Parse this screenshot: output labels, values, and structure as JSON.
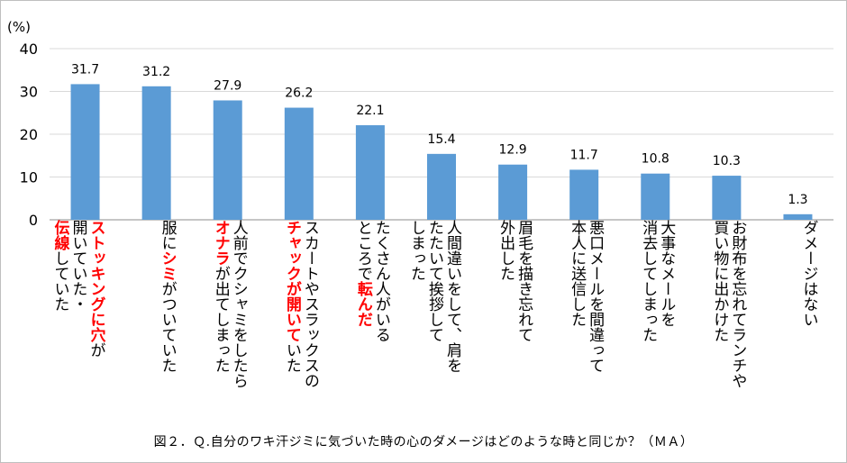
{
  "chart_data": {
    "type": "bar",
    "unit_label": "(%)",
    "ylim": [
      0,
      40
    ],
    "yticks": [
      0,
      10,
      20,
      30,
      40
    ],
    "grid": true,
    "color": "#5b9bd5",
    "highlight_color": "#ff0000",
    "values": [
      31.7,
      31.2,
      27.9,
      26.2,
      22.1,
      15.4,
      12.9,
      11.7,
      10.8,
      10.3,
      1.3
    ],
    "value_labels": [
      "31.7",
      "31.2",
      "27.9",
      "26.2",
      "22.1",
      "15.4",
      "12.9",
      "11.7",
      "10.8",
      "10.3",
      "1.3"
    ],
    "categories": [
      {
        "lines": [
          [
            {
              "t": "ストッキングに穴",
              "hl": true
            },
            {
              "t": "が",
              "hl": false
            }
          ],
          [
            {
              "t": "開いていた・",
              "hl": false
            }
          ],
          [
            {
              "t": "伝線",
              "hl": true
            },
            {
              "t": "していた",
              "hl": false
            }
          ]
        ]
      },
      {
        "lines": [
          [
            {
              "t": "服に",
              "hl": false
            },
            {
              "t": "シミ",
              "hl": true
            },
            {
              "t": "がついていた",
              "hl": false
            }
          ]
        ]
      },
      {
        "lines": [
          [
            {
              "t": "人前でクシャミをしたら",
              "hl": false
            }
          ],
          [
            {
              "t": "オナラ",
              "hl": true
            },
            {
              "t": "が出てしまった",
              "hl": false
            }
          ]
        ]
      },
      {
        "lines": [
          [
            {
              "t": "スカートやスラックスの",
              "hl": false
            }
          ],
          [
            {
              "t": "チャックが開いて",
              "hl": true
            },
            {
              "t": "いた",
              "hl": false
            }
          ]
        ]
      },
      {
        "lines": [
          [
            {
              "t": "たくさん人がいる",
              "hl": false
            }
          ],
          [
            {
              "t": "ところで",
              "hl": false
            },
            {
              "t": "転んだ",
              "hl": true
            }
          ]
        ]
      },
      {
        "lines": [
          [
            {
              "t": "人間違いをして、肩を",
              "hl": false
            }
          ],
          [
            {
              "t": "たたいて挨拶して",
              "hl": false
            }
          ],
          [
            {
              "t": "しまった",
              "hl": false
            }
          ]
        ]
      },
      {
        "lines": [
          [
            {
              "t": "眉毛を描き忘れて",
              "hl": false
            }
          ],
          [
            {
              "t": "外出した",
              "hl": false
            }
          ]
        ]
      },
      {
        "lines": [
          [
            {
              "t": "悪口メールを間違って",
              "hl": false
            }
          ],
          [
            {
              "t": "本人に送信した",
              "hl": false
            }
          ]
        ]
      },
      {
        "lines": [
          [
            {
              "t": "大事なメールを",
              "hl": false
            }
          ],
          [
            {
              "t": "消去してしまった",
              "hl": false
            }
          ]
        ]
      },
      {
        "lines": [
          [
            {
              "t": "お財布を忘れてランチや",
              "hl": false
            }
          ],
          [
            {
              "t": "買い物に出かけた",
              "hl": false
            }
          ]
        ]
      },
      {
        "lines": [
          [
            {
              "t": "ダメージはない",
              "hl": false
            }
          ]
        ]
      }
    ],
    "caption": "図２．Ｑ.自分のワキ汗ジミに気づいた時の心のダメージはどのような時と同じか？（ＭＡ）"
  }
}
